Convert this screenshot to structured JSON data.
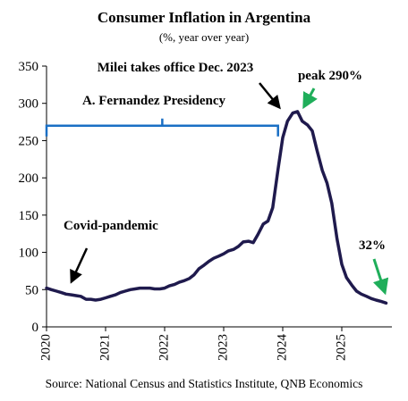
{
  "chart_data": {
    "type": "line",
    "title": "Consumer Inflation in Argentina",
    "subtitle": "(%, year over year)",
    "xlabel": "",
    "ylabel": "",
    "source": "Source: National Census and Statistics Institute, QNB Economics",
    "xlim": [
      2020.0,
      2025.85
    ],
    "ylim": [
      0,
      350
    ],
    "yticks": [
      "0",
      "50",
      "100",
      "150",
      "200",
      "250",
      "300",
      "350"
    ],
    "xticks": [
      "2020",
      "2021",
      "2022",
      "2023",
      "2024",
      "2025"
    ],
    "grid": false,
    "legend": "none",
    "series": [
      {
        "color": "#1f1a4d",
        "x": [
          2020.0,
          2020.08,
          2020.17,
          2020.25,
          2020.33,
          2020.42,
          2020.5,
          2020.58,
          2020.67,
          2020.75,
          2020.83,
          2020.92,
          2021.0,
          2021.08,
          2021.17,
          2021.25,
          2021.33,
          2021.42,
          2021.5,
          2021.58,
          2021.67,
          2021.75,
          2021.83,
          2021.92,
          2022.0,
          2022.08,
          2022.17,
          2022.25,
          2022.33,
          2022.42,
          2022.5,
          2022.58,
          2022.67,
          2022.75,
          2022.83,
          2022.92,
          2023.0,
          2023.08,
          2023.17,
          2023.25,
          2023.33,
          2023.42,
          2023.5,
          2023.58,
          2023.67,
          2023.75,
          2023.83,
          2023.92,
          2024.0,
          2024.08,
          2024.17,
          2024.25,
          2024.33,
          2024.42,
          2024.5,
          2024.58,
          2024.67,
          2024.75,
          2024.83,
          2024.92,
          2025.0,
          2025.08,
          2025.17,
          2025.25,
          2025.33,
          2025.42,
          2025.5,
          2025.58,
          2025.67,
          2025.75
        ],
        "y": [
          52,
          50,
          48,
          46,
          44,
          43,
          42,
          41,
          37,
          37,
          36,
          37,
          39,
          41,
          43,
          46,
          48,
          50,
          51,
          52,
          52,
          52,
          51,
          51,
          52,
          55,
          57,
          60,
          62,
          65,
          70,
          78,
          83,
          88,
          92,
          95,
          98,
          102,
          104,
          108,
          114,
          115,
          113,
          124,
          138,
          142,
          160,
          211,
          254,
          276,
          287,
          289,
          276,
          271,
          263,
          237,
          210,
          193,
          166,
          118,
          84,
          66,
          56,
          48,
          44,
          41,
          38,
          36,
          34,
          32
        ]
      }
    ],
    "annotations": [
      {
        "text": "Milei takes office Dec. 2023",
        "arrow_to": [
          2023.92,
          211
        ]
      },
      {
        "text": "peak 290%",
        "arrow_to": [
          2024.29,
          289
        ]
      },
      {
        "text": "A. Fernandez Presidency",
        "bracket": [
          2020.0,
          2023.92
        ],
        "bracket_y": 270
      },
      {
        "text": "Covid-pandemic",
        "arrow_to": [
          2020.5,
          42
        ]
      },
      {
        "text": "32%",
        "arrow_to": [
          2025.75,
          32
        ]
      }
    ]
  },
  "colors": {
    "line": "#1f1a4d",
    "bracket": "#1a6fc4",
    "arrow_black": "#000000",
    "arrow_green": "#1fae5a"
  }
}
